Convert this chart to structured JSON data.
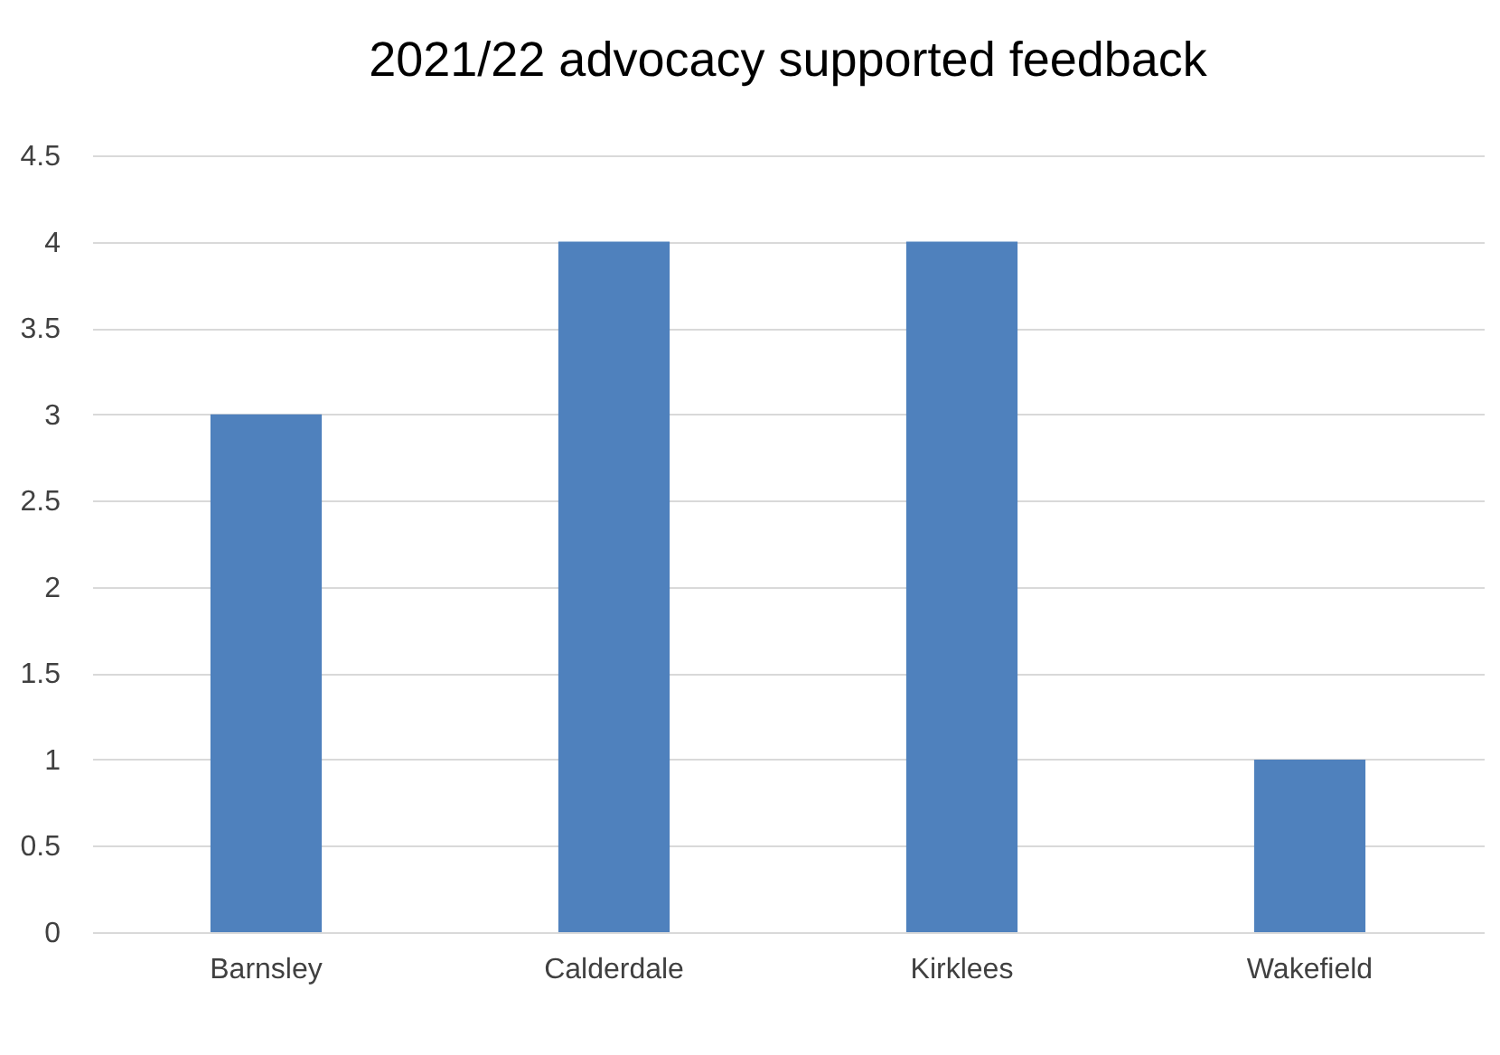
{
  "chart_data": {
    "type": "bar",
    "title": "2021/22 advocacy supported feedback",
    "categories": [
      "Barnsley",
      "Calderdale",
      "Kirklees",
      "Wakefield"
    ],
    "values": [
      3,
      4,
      4,
      1
    ],
    "color": "#4f81bd",
    "ylim": [
      0,
      4.5
    ],
    "yticks": [
      0,
      0.5,
      1,
      1.5,
      2,
      2.5,
      3,
      3.5,
      4,
      4.5
    ],
    "grid": "y"
  }
}
